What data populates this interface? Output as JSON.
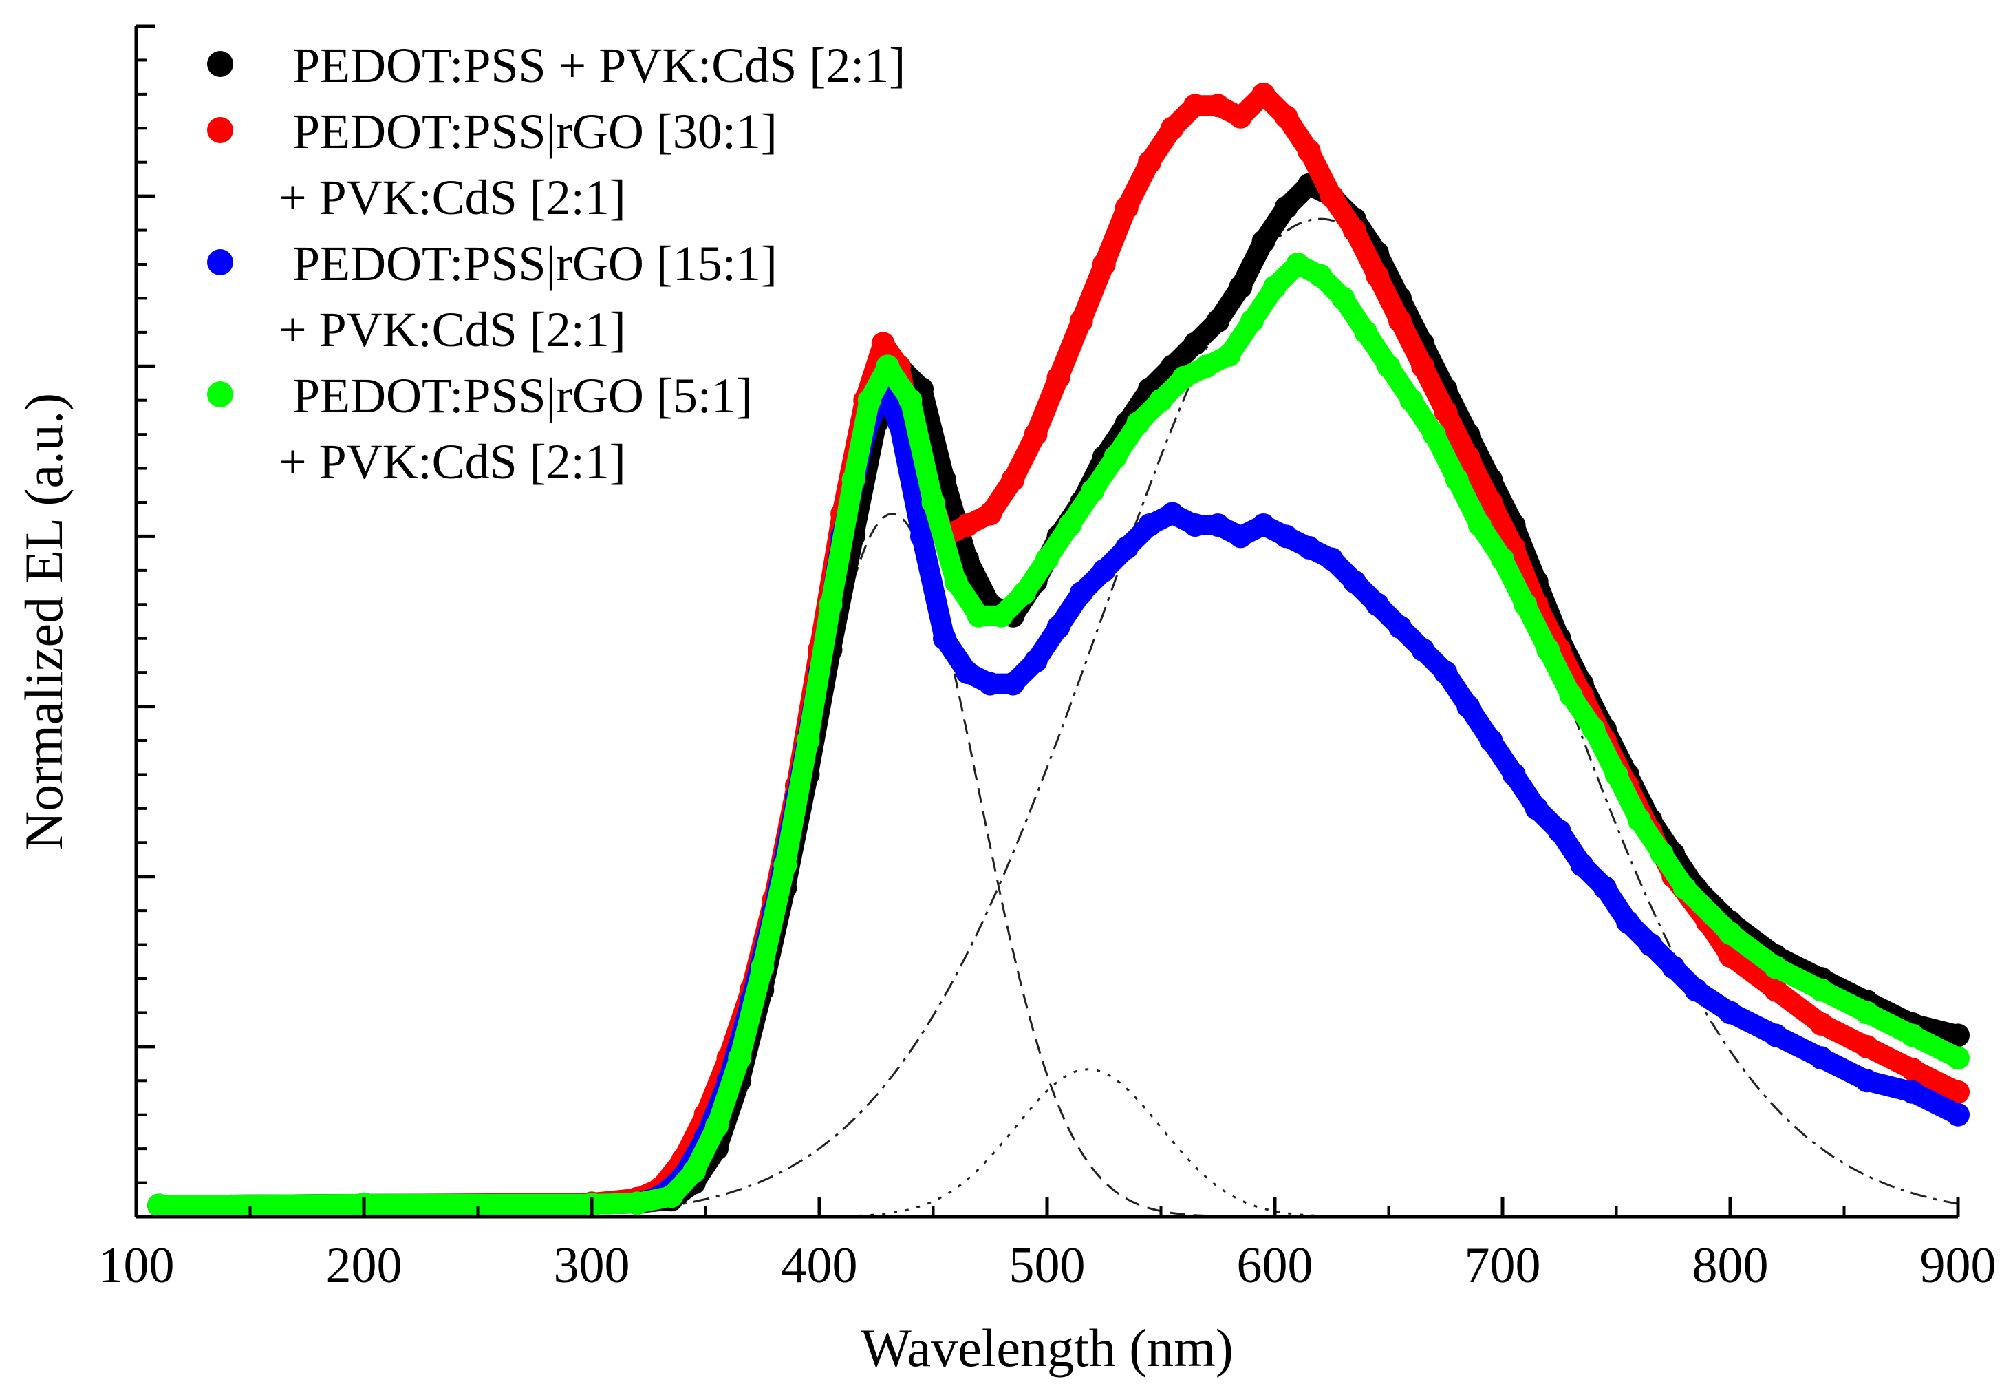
{
  "chart_data": {
    "type": "scatter",
    "title": "",
    "xlabel": "Wavelength (nm)",
    "ylabel": "Normalized EL (a.u.)",
    "xlim": [
      100,
      900
    ],
    "ylim": [
      0,
      1.05
    ],
    "x_ticks": [
      100,
      200,
      300,
      400,
      500,
      600,
      700,
      800,
      900
    ],
    "x_tick_labels": [
      "100",
      "200",
      "300",
      "400",
      "500",
      "600",
      "700",
      "800",
      "900"
    ],
    "y_tick_labels_shown": false,
    "legend_position": "top-left",
    "series": [
      {
        "name": "black",
        "legend_lines": [
          "PEDOT:PSS + PVK:CdS [2:1]"
        ],
        "color": "#000000",
        "x": [
          110,
          200,
          300,
          320,
          335,
          345,
          355,
          365,
          375,
          385,
          395,
          405,
          415,
          425,
          435,
          445,
          455,
          465,
          475,
          485,
          495,
          505,
          515,
          525,
          535,
          545,
          555,
          565,
          575,
          585,
          595,
          605,
          615,
          625,
          635,
          645,
          655,
          665,
          675,
          685,
          695,
          705,
          715,
          725,
          735,
          745,
          755,
          765,
          775,
          785,
          800,
          820,
          840,
          860,
          880,
          900
        ],
        "values": [
          0.01,
          0.011,
          0.011,
          0.012,
          0.015,
          0.03,
          0.06,
          0.12,
          0.2,
          0.29,
          0.39,
          0.5,
          0.6,
          0.7,
          0.75,
          0.73,
          0.65,
          0.58,
          0.54,
          0.53,
          0.56,
          0.6,
          0.63,
          0.67,
          0.7,
          0.73,
          0.75,
          0.77,
          0.79,
          0.82,
          0.86,
          0.89,
          0.91,
          0.9,
          0.88,
          0.85,
          0.81,
          0.77,
          0.73,
          0.69,
          0.65,
          0.61,
          0.56,
          0.51,
          0.47,
          0.43,
          0.39,
          0.35,
          0.32,
          0.29,
          0.26,
          0.23,
          0.21,
          0.19,
          0.17,
          0.16
        ]
      },
      {
        "name": "red",
        "legend_lines": [
          "PEDOT:PSS|rGO [30:1]",
          "+ PVK:CdS [2:1]"
        ],
        "color": "#ff0000",
        "x": [
          110,
          200,
          300,
          320,
          330,
          340,
          350,
          360,
          370,
          380,
          390,
          400,
          410,
          420,
          428,
          435,
          445,
          455,
          465,
          475,
          485,
          495,
          505,
          515,
          525,
          535,
          545,
          555,
          565,
          575,
          585,
          595,
          605,
          615,
          625,
          635,
          645,
          655,
          665,
          675,
          685,
          695,
          705,
          715,
          725,
          735,
          745,
          755,
          765,
          775,
          790,
          800,
          820,
          840,
          860,
          880,
          900
        ],
        "values": [
          0.01,
          0.011,
          0.012,
          0.016,
          0.025,
          0.05,
          0.09,
          0.14,
          0.2,
          0.28,
          0.38,
          0.5,
          0.62,
          0.72,
          0.77,
          0.75,
          0.66,
          0.6,
          0.61,
          0.62,
          0.65,
          0.69,
          0.74,
          0.79,
          0.84,
          0.89,
          0.93,
          0.96,
          0.98,
          0.98,
          0.97,
          0.99,
          0.97,
          0.94,
          0.9,
          0.87,
          0.83,
          0.79,
          0.75,
          0.71,
          0.67,
          0.63,
          0.59,
          0.54,
          0.5,
          0.46,
          0.42,
          0.38,
          0.34,
          0.3,
          0.26,
          0.23,
          0.2,
          0.17,
          0.15,
          0.13,
          0.11
        ]
      },
      {
        "name": "blue",
        "legend_lines": [
          "PEDOT:PSS|rGO [15:1]",
          "+ PVK:CdS [2:1]"
        ],
        "color": "#0000ff",
        "x": [
          110,
          200,
          300,
          320,
          330,
          340,
          350,
          360,
          370,
          380,
          390,
          400,
          410,
          420,
          428,
          435,
          445,
          455,
          465,
          475,
          485,
          495,
          505,
          515,
          525,
          535,
          545,
          555,
          565,
          575,
          585,
          595,
          605,
          615,
          625,
          635,
          645,
          655,
          665,
          675,
          685,
          695,
          705,
          715,
          725,
          735,
          745,
          755,
          765,
          775,
          785,
          800,
          820,
          840,
          860,
          880,
          900
        ],
        "values": [
          0.01,
          0.011,
          0.011,
          0.012,
          0.018,
          0.035,
          0.07,
          0.12,
          0.19,
          0.27,
          0.37,
          0.48,
          0.6,
          0.69,
          0.73,
          0.7,
          0.6,
          0.51,
          0.48,
          0.47,
          0.47,
          0.49,
          0.52,
          0.55,
          0.57,
          0.59,
          0.61,
          0.62,
          0.61,
          0.61,
          0.6,
          0.61,
          0.6,
          0.59,
          0.58,
          0.56,
          0.54,
          0.52,
          0.5,
          0.48,
          0.45,
          0.42,
          0.39,
          0.36,
          0.34,
          0.31,
          0.29,
          0.26,
          0.24,
          0.22,
          0.2,
          0.18,
          0.16,
          0.14,
          0.12,
          0.11,
          0.09
        ]
      },
      {
        "name": "green",
        "legend_lines": [
          "PEDOT:PSS|rGO [5:1]",
          "+ PVK:CdS [2:1]"
        ],
        "color": "#00ff00",
        "x": [
          110,
          200,
          300,
          320,
          335,
          345,
          355,
          365,
          375,
          385,
          395,
          405,
          415,
          422,
          430,
          440,
          450,
          460,
          470,
          480,
          490,
          500,
          510,
          520,
          530,
          540,
          550,
          560,
          570,
          580,
          590,
          600,
          610,
          620,
          630,
          640,
          650,
          660,
          670,
          680,
          690,
          700,
          710,
          720,
          730,
          740,
          750,
          760,
          770,
          780,
          800,
          820,
          840,
          860,
          880,
          900
        ],
        "values": [
          0.01,
          0.011,
          0.011,
          0.012,
          0.018,
          0.04,
          0.08,
          0.14,
          0.22,
          0.31,
          0.42,
          0.54,
          0.65,
          0.72,
          0.75,
          0.72,
          0.63,
          0.56,
          0.53,
          0.53,
          0.55,
          0.58,
          0.61,
          0.64,
          0.67,
          0.7,
          0.72,
          0.74,
          0.75,
          0.76,
          0.79,
          0.82,
          0.84,
          0.83,
          0.81,
          0.78,
          0.75,
          0.72,
          0.69,
          0.65,
          0.61,
          0.58,
          0.54,
          0.5,
          0.46,
          0.43,
          0.39,
          0.35,
          0.32,
          0.29,
          0.25,
          0.22,
          0.2,
          0.18,
          0.16,
          0.14
        ]
      }
    ],
    "fit_components": [
      {
        "name": "gaussian-430",
        "style": "dashed",
        "center": 432,
        "amplitude": 0.62,
        "sigma": 38
      },
      {
        "name": "gaussian-518",
        "style": "dotted",
        "center": 518,
        "amplitude": 0.13,
        "sigma": 32
      },
      {
        "name": "gaussian-620",
        "style": "dash-dot",
        "center": 620,
        "amplitude": 0.88,
        "sigma": 95
      }
    ]
  }
}
